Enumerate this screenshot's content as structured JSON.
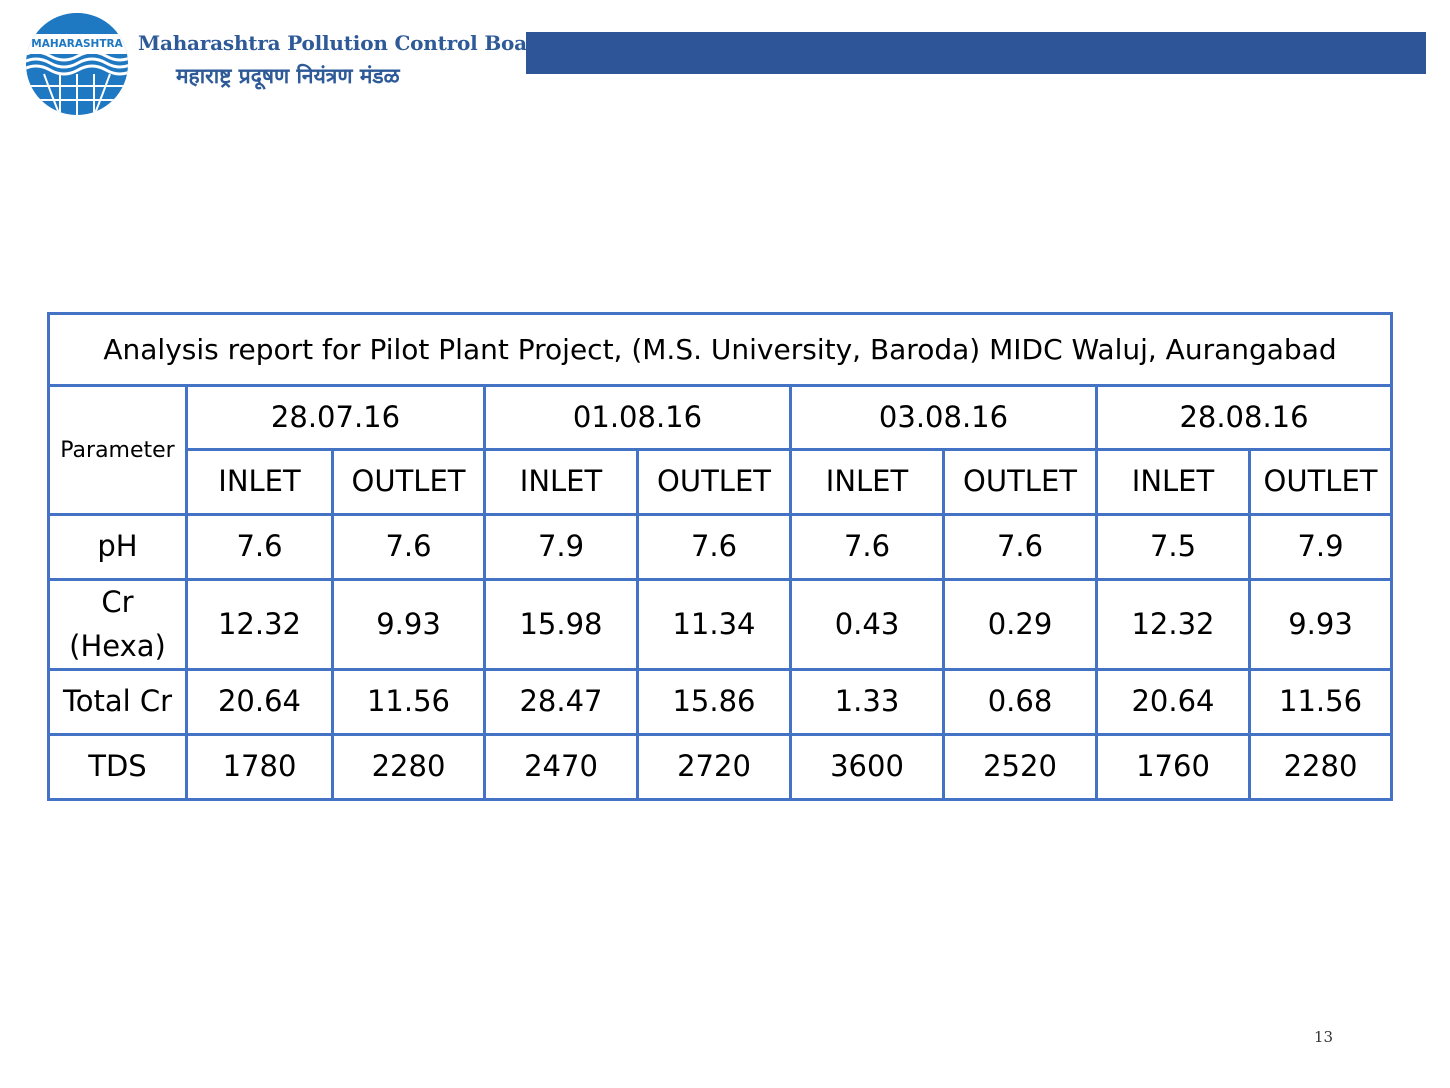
{
  "header": {
    "logo_text": "MAHARASHTRA",
    "org_name_en": "Maharashtra Pollution Control Board",
    "org_name_mr": "महाराष्ट्र प्रदूषण नियंत्रण मंडळ",
    "bar_color": "#2d5597"
  },
  "table": {
    "title": "Analysis report for Pilot Plant Project, (M.S. University, Baroda) MIDC Waluj, Aurangabad",
    "parameter_label": "Parameter",
    "dates": [
      "28.07.16",
      "01.08.16",
      "03.08.16",
      "28.08.16"
    ],
    "inlet_label": "INLET",
    "outlet_label": "OUTLET",
    "rows": [
      {
        "label": "pH",
        "values": [
          "7.6",
          "7.6",
          "7.9",
          "7.6",
          "7.6",
          "7.6",
          "7.5",
          "7.9"
        ]
      },
      {
        "label_line1": "Cr",
        "label_line2": "(Hexa)",
        "values": [
          "12.32",
          "9.93",
          "15.98",
          "11.34",
          "0.43",
          "0.29",
          "12.32",
          "9.93"
        ]
      },
      {
        "label": "Total Cr",
        "values": [
          "20.64",
          "11.56",
          "28.47",
          "15.86",
          "1.33",
          "0.68",
          "20.64",
          "11.56"
        ]
      },
      {
        "label": "TDS",
        "values": [
          "1780",
          "2280",
          "2470",
          "2720",
          "3600",
          "2520",
          "1760",
          "2280"
        ]
      }
    ],
    "border_color": "#4472c4"
  },
  "page_number": "13"
}
